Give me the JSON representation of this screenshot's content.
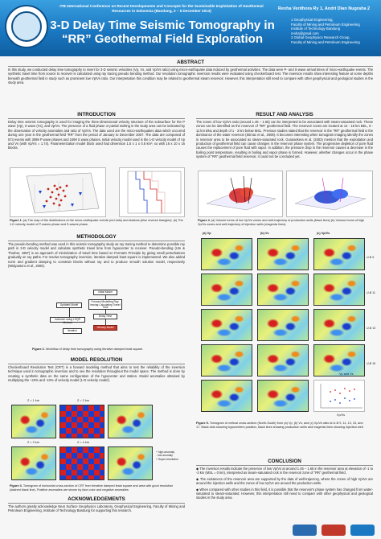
{
  "header": {
    "conference": "ITB International Conference on Recent Developments and Concepts for the Sustainable Exploitation of Geothermal Resources in Indonesia (Bandung, 2 – 5 December 2013)",
    "title": "3-D Delay Time Seismic Tomography in “RR” Geothermal Field Exploration",
    "authors": "Rexha Verdhora Ry 1, Andri Dian Nugraha 2",
    "affiliations": [
      "1 Geophysical Engineering,",
      "Faculty of Mining and Petroleum Engineering",
      "Institute of Technology Bandung",
      "rexha@gmail.com",
      "2 Global Geophysics Research Group,",
      "Faculty of Mining and Petroleum Engineering"
    ],
    "logo_text": "INSTITUT TEKNOLOGI BANDUNG 1920"
  },
  "abstract": {
    "heading": "ABSTRACT",
    "text": "In this study, we conducted delay time tomography to invert for 3-D seismic velocities (Vp, Vs, and Vp/Vs ratio) using micro-earthquake data induced by geothermal activities. The data were P- and S-wave arrival times of micro-earthquake events. The synthetic travel time from source to receiver is calculated using ray tracing pseudo bending method. Our resolution tomographic inversion results were evaluated using checkerboard test. The inversion results show interesting feature at some depths beneath geothermal field in study such as prominent low Vp/Vs ratio. Our interpretation this condition may be related to geothermal steam reservoir. However, this interpretation still need to compare with other geophysical and geological studies in the study area."
  },
  "introduction": {
    "heading": "INTRODUCTION",
    "text": "Delay time seismic tomography is used for imaging the three-dimensional velocity structure of the subsurface for the P wave (Vp), S wave (Vs), and Vp/Vs. The presence of a fluid phase or partial melting in the study area can be indicated by the observation of velocity anomalies and ratio of Vp/Vs. The data used are the micro-earthquakes data which occurred during one year in the geothermal field “RR” from the period of January to December 2007. The data are composed of 573 events with 3099 P wave phases and 2499 S wave phases. Initial velocity model used is the 1-D velocity model of Vp and Vs (with Vp/Vs = 1.74). Parameterization model block used had dimension 1.5 x 1 x 0.5 km³, so with 16 x 10 x 16 blocks.",
    "fig1_caption_label": "Figure 1.",
    "fig1_caption": "(a) The map of the distributions of the micro-earthquake events (red dots) and stations (blue reverse triangles). (b) The 1-D velocity model of P-waves phase and S-waves phase."
  },
  "methodology": {
    "heading": "METHODOLOGY",
    "text": "The pseudo-bending method was used in this seismic tomography study as ray tracing method to determine possible ray path in 3-D velocity model and calculate synthetic travel time from hypocenter to receiver. Pseudo-bending (Um & Thurber, 1987) is an approach of minimization of travel time based on Fermat's Principle by giving small perturbations gradually on ray paths. For resolve tomography inversion, iterative damped least square is implemented. We also added norm and gradient damping to constrain blocks without ray and to produce smooth solution model, respectively (Widyantoro et al., 2000).",
    "flow": [
      "Initial Model",
      "Updated Model",
      "Forward Modelling Ray-tracing Calculating Travel Time",
      "Delay Time",
      "Inversion using LSQR Method",
      "Velocity Model",
      "Iteration"
    ],
    "fig2_caption_label": "Figure 2.",
    "fig2_caption": "Workflow of delay time tomography using iterative damped least square."
  },
  "model_resolution": {
    "heading": "MODEL RESOLUTION",
    "text": "Checkerboard Resolution Test (CRT) is a forward modeling method that aims to test the reliability of the inversion technique used in tomographic inversion and to see the resolution throughout the model space. The method is done by creating a synthetic data on the same configuration of the hypocenter and station. Model anomalies obtained by multiplying the +10% and -10% of velocity model (1-D velocity model).",
    "depth_labels": [
      "Z = 1 km",
      "Z = 2 km",
      "Z = 3 km",
      "Z = 4 km"
    ],
    "legend": [
      "+ high anomaly",
      "- low anomaly",
      "+ Super-resolution"
    ],
    "fig3_caption_label": "Figure 3.",
    "fig3_caption": "Tomogram of horizontal cross-section of CRT from iterative damped least square and area with good resolution (dashed black line). Positive anomalies are shown by blue color and negative anomalies"
  },
  "acknowledgements": {
    "heading": "ACKNOWLEDGEMENTS",
    "text": "The authors greatly acknowledge Near Surface Geophysics Laboratory, Geophysical Engineering, Faculty of Mining and Petroleum Engineering, Institute of Technology Bandung for supporting this research."
  },
  "results": {
    "heading": "RESULT AND ANALYSIS",
    "text": "The zones of low Vp/Vs ratio (around 1.45 – 1.65) can be interpreted to be associated with steam-saturated rock. These zones can be identified as the reservoir of “RR” geothermal field. The reservoir zones are located at 12 - 18 km BEL, 5 - 11 km BNL and depth of 1 - 3 km below MSL. Previous studies stated that the reservoir in the “RR” geothermal field is the dominance of the water reservoir (Stimac et al., 2008). It becomes interesting when tomogram imaging identify the zones in reservoir area to be associated as steam-saturated rock. Gunasekera et al. (2003) mention that the exploitation and production of geothermal field can cause changes in the reservoir phase system. The progressive depletion of pore fluid causes the replacement of pore fluid with vapor. In addition, the pressure drop in the reservoir causes a decrease in the boiling point temperature, resulting in boiling and vapor phase is formed. However, whether changes occur in the phase system of “RR” geothermal field reservoir, it could not be concluded yet.",
    "fig4_caption_label": "Figure 4.",
    "fig4_caption": "(a) Volume forms of low Vp/Vs zones and well-trajectory of production wells (black lines) (b) Volume forms of high Vp/Vs zones and well-trajectory of injection wells (magenta lines).",
    "fig5_caption_label": "Figure 5.",
    "fig5_caption": "Tomogram of vertical cross-section (North-South) from (a) Vp, (b) Vs, and (c) Vp/Vs ratio at U-B 9, 11, 13, 15, and 17. Black dots showing hypocenters position, black lines showing production wells and magenta lines showing injection well.",
    "col_labels": [
      "(a) Vp",
      "(b) Vs",
      "(c) Vp/Vs"
    ],
    "row_labels": [
      "U-B 9",
      "U-B 11",
      "U-B 13",
      "U-B 15",
      "U-B 17"
    ],
    "scatter_label_x": "Vp/Vs",
    "scatter_label_y": "Vp and Vs"
  },
  "conclusion": {
    "heading": "CONCLUSION",
    "items": [
      "The inversion results indicate the presence of low Vp/Vs at around 1.45 – 1.65 in the reservoir area at elevation of -1 to -3 km (MSL = 0 km), interpreted as steam-saturated rock in the reservoir zone of “RR” geothermal field.",
      "The existences of the reservoir area are supported by the data of well-trajectory, where the zones of high Vp/Vs are around the injection wells and the zones of low Vp/Vs are around the production wells.",
      "When compared with other studies in this field, it is possible that the reservoir's phase system has changed from water-saturated to steam-saturated. However, this interpretation still need to compare with other geophysical and geological studies in the study area."
    ]
  },
  "colors": {
    "header_blue": "#1b78c2",
    "anomaly_red": "#d62020",
    "anomaly_blue": "#1a3fcf"
  }
}
